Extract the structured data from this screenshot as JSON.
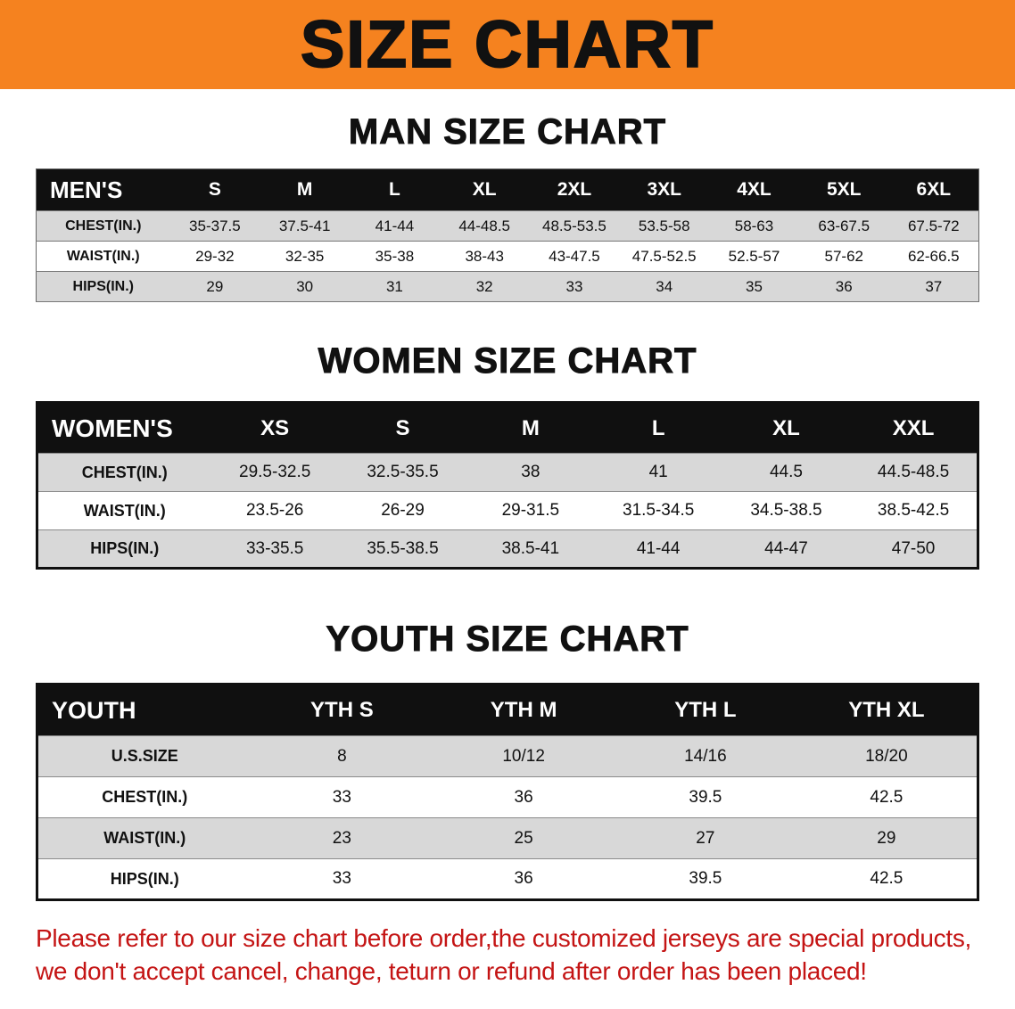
{
  "banner": {
    "title": "SIZE CHART",
    "bg_color": "#F5821F"
  },
  "sections": [
    {
      "heading": "MAN SIZE CHART",
      "table": {
        "header": [
          "MEN'S",
          "S",
          "M",
          "L",
          "XL",
          "2XL",
          "3XL",
          "4XL",
          "5XL",
          "6XL"
        ],
        "rows": [
          [
            "CHEST(IN.)",
            "35-37.5",
            "37.5-41",
            "41-44",
            "44-48.5",
            "48.5-53.5",
            "53.5-58",
            "58-63",
            "63-67.5",
            "67.5-72"
          ],
          [
            "WAIST(IN.)",
            "29-32",
            "32-35",
            "35-38",
            "38-43",
            "43-47.5",
            "47.5-52.5",
            "52.5-57",
            "57-62",
            "62-66.5"
          ],
          [
            "HIPS(IN.)",
            "29",
            "30",
            "31",
            "32",
            "33",
            "34",
            "35",
            "36",
            "37"
          ]
        ]
      }
    },
    {
      "heading": "WOMEN SIZE CHART",
      "table": {
        "header": [
          "WOMEN'S",
          "XS",
          "S",
          "M",
          "L",
          "XL",
          "XXL"
        ],
        "rows": [
          [
            "CHEST(IN.)",
            "29.5-32.5",
            "32.5-35.5",
            "38",
            "41",
            "44.5",
            "44.5-48.5"
          ],
          [
            "WAIST(IN.)",
            "23.5-26",
            "26-29",
            "29-31.5",
            "31.5-34.5",
            "34.5-38.5",
            "38.5-42.5"
          ],
          [
            "HIPS(IN.)",
            "33-35.5",
            "35.5-38.5",
            "38.5-41",
            "41-44",
            "44-47",
            "47-50"
          ]
        ]
      }
    },
    {
      "heading": "YOUTH SIZE CHART",
      "table": {
        "header": [
          "YOUTH",
          "YTH S",
          "YTH M",
          "YTH L",
          "YTH XL"
        ],
        "rows": [
          [
            "U.S.SIZE",
            "8",
            "10/12",
            "14/16",
            "18/20"
          ],
          [
            "CHEST(IN.)",
            "33",
            "36",
            "39.5",
            "42.5"
          ],
          [
            "WAIST(IN.)",
            "23",
            "25",
            "27",
            "29"
          ],
          [
            "HIPS(IN.)",
            "33",
            "36",
            "39.5",
            "42.5"
          ]
        ]
      }
    }
  ],
  "disclaimer": {
    "line1": "Please refer to our size chart before order,the customized jerseys are special products,",
    "line2": "we don't accept cancel, change, teturn or refund after order has been placed!",
    "color": "#C41414"
  }
}
